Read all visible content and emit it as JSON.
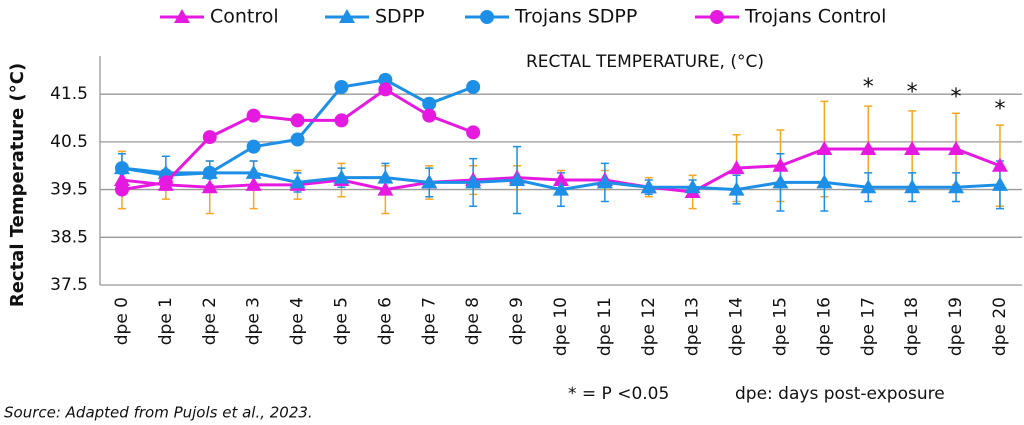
{
  "chart_data": {
    "type": "line",
    "title": "RECTAL TEMPERATURE, (°C)",
    "y_label": "Rectal Temperature (°C)",
    "categories": [
      "dpe 0",
      "dpe 1",
      "dpe 2",
      "dpe 3",
      "dpe 4",
      "dpe 5",
      "dpe 6",
      "dpe 7",
      "dpe 8",
      "dpe 9",
      "dpe 10",
      "dpe 11",
      "dpe 12",
      "dpe 13",
      "dpe 14",
      "dpe 15",
      "dpe 16",
      "dpe 17",
      "dpe 18",
      "dpe 19",
      "dpe 20"
    ],
    "series": [
      {
        "name": "Control",
        "color": "#e619e0",
        "marker": "triangle",
        "error_color": "#f5a623",
        "values": [
          39.7,
          39.6,
          39.55,
          39.6,
          39.6,
          39.7,
          39.5,
          39.65,
          39.7,
          39.75,
          39.7,
          39.7,
          39.55,
          39.45,
          39.95,
          40.0,
          40.35,
          40.35,
          40.35,
          40.35,
          40.0
        ],
        "errors": [
          0.6,
          0.3,
          0.55,
          0.5,
          0.3,
          0.35,
          0.5,
          0.35,
          0.3,
          0.25,
          0.2,
          0.2,
          0.2,
          0.35,
          0.7,
          0.75,
          1.0,
          0.9,
          0.8,
          0.75,
          0.85
        ]
      },
      {
        "name": "SDPP",
        "color": "#1e8fe6",
        "marker": "triangle",
        "error_color": "#1e8fe6",
        "values": [
          39.95,
          39.85,
          39.85,
          39.85,
          39.65,
          39.75,
          39.75,
          39.65,
          39.65,
          39.7,
          39.5,
          39.65,
          39.55,
          39.55,
          39.5,
          39.65,
          39.65,
          39.55,
          39.55,
          39.55,
          39.6
        ],
        "errors": [
          0.3,
          0.35,
          0.25,
          0.25,
          0.2,
          0.2,
          0.3,
          0.3,
          0.5,
          0.7,
          0.35,
          0.4,
          0.15,
          0.15,
          0.3,
          0.6,
          0.6,
          0.3,
          0.3,
          0.3,
          0.5
        ]
      },
      {
        "name": "Trojans SDPP",
        "color": "#1e8fe6",
        "marker": "circle",
        "values": [
          39.95,
          39.8,
          39.85,
          40.4,
          40.55,
          41.65,
          41.8,
          41.3,
          41.65,
          null,
          null,
          null,
          null,
          null,
          null,
          null,
          null,
          null,
          null,
          null,
          null
        ]
      },
      {
        "name": "Trojans Control",
        "color": "#e619e0",
        "marker": "circle",
        "values": [
          39.5,
          39.65,
          40.6,
          41.05,
          40.95,
          40.95,
          41.6,
          41.05,
          40.7,
          null,
          null,
          null,
          null,
          null,
          null,
          null,
          null,
          null,
          null,
          null,
          null
        ]
      }
    ],
    "ylim": [
      37.5,
      42.3
    ],
    "yticks": [
      37.5,
      38.5,
      39.5,
      40.5,
      41.5
    ],
    "grid": true,
    "annotations": [
      {
        "text": "*",
        "x": "dpe 17"
      },
      {
        "text": "*",
        "x": "dpe 18"
      },
      {
        "text": "*",
        "x": "dpe 19"
      },
      {
        "text": "*",
        "x": "dpe 20"
      }
    ],
    "notes": [
      "* = P <0.05",
      "dpe: days post-exposure"
    ],
    "source": "Source: Adapted from Pujols et al., 2023."
  }
}
